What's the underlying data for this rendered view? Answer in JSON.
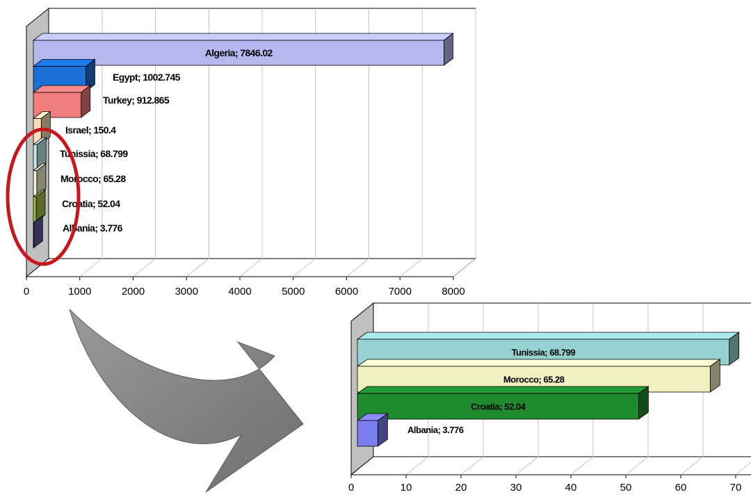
{
  "chart_data": [
    {
      "type": "bar",
      "orientation": "horizontal",
      "style": "3d",
      "categories": [
        "Algeria",
        "Egypt",
        "Turkey",
        "Israel",
        "Tunissia",
        "Morocco",
        "Croatia",
        "Albania"
      ],
      "values": [
        7846.02,
        1002.745,
        912.865,
        150.4,
        68.799,
        65.28,
        52.04,
        3.776
      ],
      "data_labels": [
        "Algeria; 7846.02",
        "Egypt; 1002.745",
        "Turkey; 912.865",
        "Israel; 150.4",
        "Tunissia; 68.799",
        "Morocco; 65.28",
        "Croatia; 52.04",
        "Albania; 3.776"
      ],
      "colors": [
        "#b4b8ee",
        "#1b6fd6",
        "#f07c7c",
        "#f9ddb8",
        "#c5eaea",
        "#f3f1d2",
        "#a6c244",
        "#5b5ea3"
      ],
      "xlim": [
        0,
        8000
      ],
      "xticks": [
        0,
        1000,
        2000,
        3000,
        4000,
        5000,
        6000,
        7000,
        8000
      ],
      "grid": true,
      "legend": "none"
    },
    {
      "type": "bar",
      "orientation": "horizontal",
      "style": "3d",
      "categories": [
        "Tunissia",
        "Morocco",
        "Croatia",
        "Albania"
      ],
      "values": [
        68.799,
        65.28,
        52.04,
        3.776
      ],
      "data_labels": [
        "Tunissia; 68.799",
        "Morocco; 65.28",
        "Croatia; 52.04",
        "Albania; 3.776"
      ],
      "colors": [
        "#96d2d2",
        "#f2f0c0",
        "#1f8a2e",
        "#7a7ef0"
      ],
      "xlim": [
        0,
        70
      ],
      "xticks": [
        0,
        10,
        20,
        30,
        40,
        50,
        60,
        70
      ],
      "grid": true,
      "legend": "none"
    }
  ],
  "annotations": {
    "highlight": "red-ellipse",
    "arrow_color": "#808080"
  }
}
